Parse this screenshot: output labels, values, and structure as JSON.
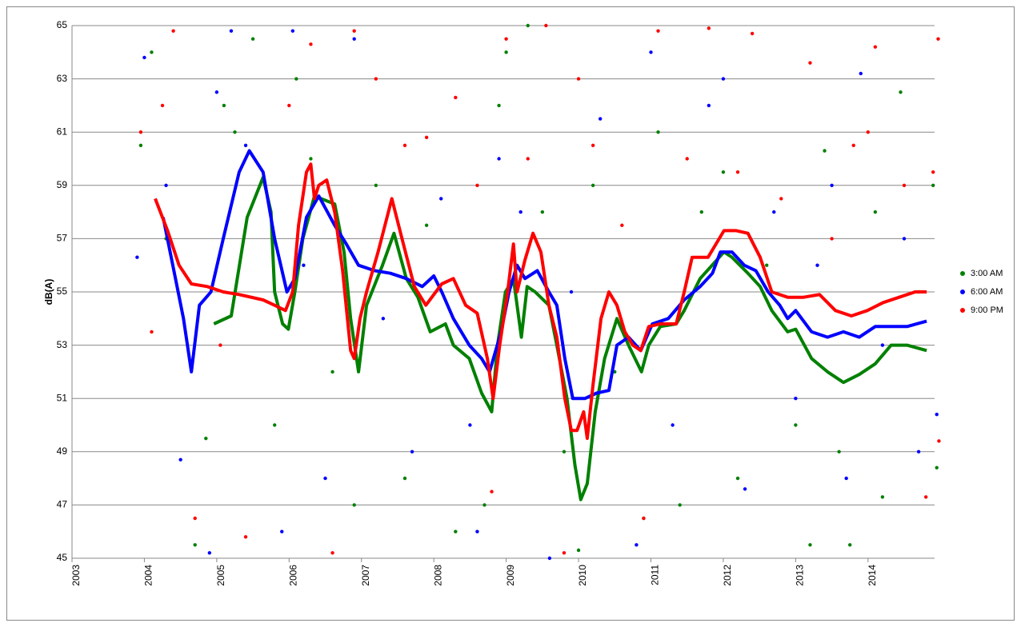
{
  "chart_data": {
    "type": "scatter",
    "y_label": "dB(A)",
    "xlim": [
      2003,
      2014.92
    ],
    "xticks": [
      2003,
      2004,
      2005,
      2006,
      2007,
      2008,
      2009,
      2010,
      2011,
      2012,
      2013,
      2014
    ],
    "ylim": [
      45,
      65
    ],
    "yticks": [
      45,
      47,
      49,
      51,
      53,
      55,
      57,
      59,
      61,
      63,
      65
    ],
    "grid": true,
    "legend": "right",
    "series": [
      {
        "name": "3:00 AM",
        "color": "#008000",
        "x": [
          2003.95,
          2004.1,
          2004.3,
          2004.7,
          2004.85,
          2005.1,
          2005.25,
          2005.5,
          2005.8,
          2006.1,
          2006.3,
          2006.6,
          2006.9,
          2007.2,
          2007.6,
          2007.9,
          2008.3,
          2008.7,
          2008.9,
          2009.0,
          2009.3,
          2009.5,
          2009.8,
          2010.0,
          2010.2,
          2010.5,
          2010.9,
          2011.1,
          2011.4,
          2011.7,
          2012.0,
          2012.2,
          2012.6,
          2013.0,
          2013.2,
          2013.4,
          2013.6,
          2013.75,
          2014.1,
          2014.2,
          2014.45,
          2014.7,
          2014.9,
          2014.95
        ],
        "values": [
          60.5,
          64,
          57,
          45.5,
          49.5,
          62,
          61,
          64.5,
          50,
          63,
          60,
          52,
          47,
          59,
          48,
          57.5,
          46,
          47,
          62,
          64,
          65,
          58,
          49,
          45.3,
          59,
          52,
          46.5,
          61,
          47,
          58,
          59.5,
          48,
          56,
          50,
          45.5,
          60.3,
          49,
          45.5,
          58,
          47.3,
          62.5,
          55,
          59,
          48.4
        ],
        "trend": {
          "x": [
            2004.96,
            2005.2,
            2005.42,
            2005.64,
            2005.75,
            2005.8,
            2005.91,
            2005.99,
            2006.08,
            2006.19,
            2006.35,
            2006.63,
            2006.76,
            2006.85,
            2006.96,
            2007.07,
            2007.29,
            2007.45,
            2007.62,
            2007.78,
            2007.95,
            2008.16,
            2008.27,
            2008.49,
            2008.66,
            2008.8,
            2008.88,
            2008.99,
            2009.1,
            2009.21,
            2009.29,
            2009.4,
            2009.59,
            2009.7,
            2009.84,
            2009.95,
            2010.03,
            2010.12,
            2010.23,
            2010.36,
            2010.53,
            2010.69,
            2010.87,
            2010.97,
            2011.13,
            2011.35,
            2011.46,
            2011.68,
            2012.01,
            2012.12,
            2012.34,
            2012.51,
            2012.67,
            2012.89,
            2013.0,
            2013.22,
            2013.44,
            2013.66,
            2013.88,
            2014.1,
            2014.32,
            2014.54,
            2014.81
          ],
          "values": [
            53.8,
            54.1,
            57.8,
            59.3,
            58.0,
            55.0,
            53.8,
            53.6,
            55.0,
            57.0,
            58.6,
            58.3,
            56.5,
            54.0,
            52.0,
            54.5,
            56.0,
            57.2,
            55.5,
            54.8,
            53.5,
            53.8,
            53.0,
            52.5,
            51.2,
            50.5,
            53.0,
            55.0,
            55.5,
            53.3,
            55.2,
            55.0,
            54.5,
            53.0,
            51.0,
            48.5,
            47.2,
            47.8,
            50.5,
            52.5,
            54.0,
            53.0,
            52.0,
            53.0,
            53.7,
            53.8,
            54.3,
            55.5,
            56.5,
            56.3,
            55.7,
            55.2,
            54.3,
            53.5,
            53.6,
            52.5,
            52.0,
            51.6,
            51.9,
            52.3,
            53.0,
            53.0,
            52.8
          ]
        }
      },
      {
        "name": "6:00 AM",
        "color": "#0000ff",
        "x": [
          2003.9,
          2004.0,
          2004.3,
          2004.5,
          2004.9,
          2005.0,
          2005.2,
          2005.4,
          2005.9,
          2006.05,
          2006.2,
          2006.5,
          2006.9,
          2007.3,
          2007.7,
          2008.1,
          2008.5,
          2008.6,
          2008.9,
          2009.2,
          2009.6,
          2009.9,
          2010.3,
          2010.8,
          2011.0,
          2011.3,
          2011.8,
          2012.0,
          2012.3,
          2012.7,
          2013.0,
          2013.3,
          2013.5,
          2013.7,
          2013.9,
          2014.2,
          2014.5,
          2014.7,
          2014.95
        ],
        "values": [
          56.3,
          63.8,
          59,
          48.7,
          45.2,
          62.5,
          64.8,
          60.5,
          46,
          64.8,
          56,
          48,
          64.5,
          54,
          49,
          58.5,
          50,
          46,
          60,
          58,
          45,
          55,
          61.5,
          45.5,
          64,
          50,
          62,
          63,
          47.6,
          58,
          51,
          56,
          59,
          48,
          63.2,
          53,
          57,
          49,
          50.4
        ],
        "trend": {
          "x": [
            2004.26,
            2004.43,
            2004.54,
            2004.65,
            2004.76,
            2004.92,
            2005.09,
            2005.31,
            2005.45,
            2005.64,
            2005.8,
            2005.97,
            2006.08,
            2006.24,
            2006.41,
            2006.63,
            2006.79,
            2006.96,
            2007.18,
            2007.4,
            2007.62,
            2007.84,
            2008.0,
            2008.11,
            2008.27,
            2008.49,
            2008.66,
            2008.77,
            2008.93,
            2009.04,
            2009.15,
            2009.26,
            2009.43,
            2009.59,
            2009.7,
            2009.81,
            2009.92,
            2010.09,
            2010.25,
            2010.42,
            2010.53,
            2010.69,
            2010.86,
            2011.02,
            2011.24,
            2011.46,
            2011.68,
            2011.85,
            2011.96,
            2012.12,
            2012.29,
            2012.45,
            2012.62,
            2012.78,
            2012.89,
            2013.0,
            2013.22,
            2013.44,
            2013.66,
            2013.88,
            2014.1,
            2014.32,
            2014.54,
            2014.81
          ],
          "values": [
            57.8,
            55.5,
            54.0,
            52.0,
            54.5,
            55.0,
            57.0,
            59.5,
            60.3,
            59.5,
            57.0,
            55.0,
            55.5,
            57.8,
            58.6,
            57.5,
            56.8,
            56.0,
            55.8,
            55.7,
            55.5,
            55.2,
            55.6,
            55.0,
            54.0,
            53.0,
            52.5,
            52.0,
            53.5,
            55.0,
            56.0,
            55.5,
            55.8,
            55.0,
            54.5,
            52.5,
            51.0,
            51.0,
            51.2,
            51.3,
            53.0,
            53.3,
            52.8,
            53.8,
            54.0,
            54.7,
            55.2,
            55.7,
            56.5,
            56.5,
            56.0,
            55.8,
            55.0,
            54.5,
            54.0,
            54.3,
            53.5,
            53.3,
            53.5,
            53.3,
            53.7,
            53.7,
            53.7,
            53.9
          ]
        }
      },
      {
        "name": "9:00 PM",
        "color": "#ff0000",
        "x": [
          2003.95,
          2004.1,
          2004.25,
          2004.4,
          2004.7,
          2005.05,
          2005.4,
          2006.0,
          2006.3,
          2006.6,
          2006.9,
          2007.2,
          2007.6,
          2007.9,
          2008.3,
          2008.6,
          2008.8,
          2009.0,
          2009.3,
          2009.55,
          2009.8,
          2010.0,
          2010.2,
          2010.6,
          2010.9,
          2011.1,
          2011.5,
          2011.8,
          2012.2,
          2012.4,
          2012.8,
          2013.2,
          2013.5,
          2013.8,
          2014.0,
          2014.1,
          2014.5,
          2014.8,
          2014.9,
          2014.97,
          2014.98
        ],
        "values": [
          61,
          53.5,
          62,
          64.8,
          46.5,
          53,
          45.8,
          62,
          64.3,
          45.2,
          64.8,
          63,
          60.5,
          60.8,
          62.3,
          59,
          47.5,
          64.5,
          60,
          65,
          45.2,
          63,
          60.5,
          57.5,
          46.5,
          64.8,
          60,
          64.9,
          59.5,
          64.7,
          58.5,
          63.6,
          57,
          60.5,
          61,
          64.2,
          59,
          47.3,
          59.5,
          64.5,
          49.4
        ],
        "trend": {
          "x": [
            2004.15,
            2004.32,
            2004.48,
            2004.65,
            2004.87,
            2005.09,
            2005.31,
            2005.64,
            2005.8,
            2005.95,
            2006.05,
            2006.13,
            2006.24,
            2006.3,
            2006.35,
            2006.41,
            2006.52,
            2006.63,
            2006.74,
            2006.85,
            2006.9,
            2006.98,
            2007.07,
            2007.23,
            2007.42,
            2007.56,
            2007.73,
            2007.89,
            2008.11,
            2008.27,
            2008.44,
            2008.6,
            2008.74,
            2008.82,
            2008.91,
            2009.02,
            2009.1,
            2009.15,
            2009.26,
            2009.37,
            2009.48,
            2009.59,
            2009.7,
            2009.81,
            2009.9,
            2009.98,
            2010.07,
            2010.12,
            2010.2,
            2010.31,
            2010.42,
            2010.53,
            2010.64,
            2010.75,
            2010.86,
            2010.97,
            2011.13,
            2011.35,
            2011.46,
            2011.57,
            2011.79,
            2012.01,
            2012.18,
            2012.34,
            2012.51,
            2012.67,
            2012.89,
            2013.11,
            2013.33,
            2013.55,
            2013.77,
            2013.99,
            2014.21,
            2014.43,
            2014.65,
            2014.81
          ],
          "values": [
            58.5,
            57.3,
            56.0,
            55.3,
            55.2,
            55.0,
            54.9,
            54.7,
            54.5,
            54.3,
            55.0,
            57.5,
            59.5,
            59.8,
            58.5,
            59.0,
            59.2,
            58.0,
            55.8,
            52.8,
            52.5,
            54.0,
            55.0,
            56.5,
            58.5,
            57.0,
            55.2,
            54.5,
            55.3,
            55.5,
            54.5,
            54.2,
            52.5,
            51.0,
            53.0,
            55.0,
            56.8,
            55.0,
            56.2,
            57.2,
            56.5,
            54.5,
            53.3,
            51.0,
            49.8,
            49.8,
            50.5,
            49.5,
            51.5,
            54.0,
            55.0,
            54.5,
            53.5,
            53.0,
            52.8,
            53.7,
            53.8,
            53.8,
            55.0,
            56.3,
            56.3,
            57.3,
            57.3,
            57.2,
            56.3,
            55.0,
            54.8,
            54.8,
            54.9,
            54.3,
            54.1,
            54.3,
            54.6,
            54.8,
            55.0,
            55.0
          ]
        }
      }
    ]
  }
}
